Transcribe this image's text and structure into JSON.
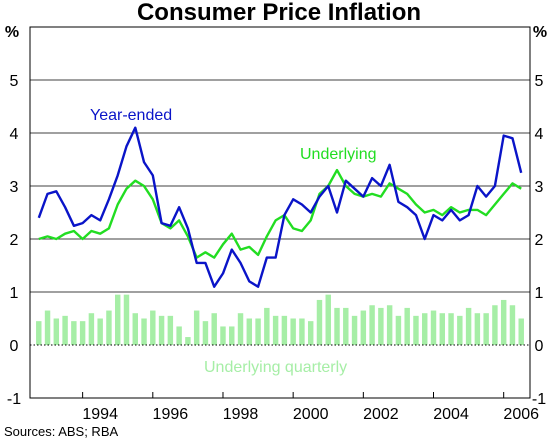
{
  "chart_data": {
    "type": "line",
    "title": "Consumer Price Inflation",
    "unit_left": "%",
    "unit_right": "%",
    "source": "Sources: ABS; RBA",
    "ylim": [
      -1,
      6
    ],
    "y_ticks": [
      -1,
      0,
      1,
      2,
      3,
      4,
      5
    ],
    "xlim": [
      1992.5,
      2006.75
    ],
    "x_ticks": [
      "1994",
      "1996",
      "1998",
      "2000",
      "2002",
      "2004",
      "2006"
    ],
    "grid": true,
    "colors": {
      "year_ended": "#0a14c8",
      "underlying": "#22dd22",
      "underlying_quarterly": "#a6eea6",
      "grid": "#000000",
      "zero_line": "#000000"
    },
    "annotations": {
      "year_ended": "Year-ended",
      "underlying": "Underlying",
      "underlying_quarterly": "Underlying quarterly"
    },
    "series": [
      {
        "name": "Year-ended",
        "kind": "line",
        "x": [
          1992.75,
          1993.0,
          1993.25,
          1993.5,
          1993.75,
          1994.0,
          1994.25,
          1994.5,
          1994.75,
          1995.0,
          1995.25,
          1995.5,
          1995.75,
          1996.0,
          1996.25,
          1996.5,
          1996.75,
          1997.0,
          1997.25,
          1997.5,
          1997.75,
          1998.0,
          1998.25,
          1998.5,
          1998.75,
          1999.0,
          1999.25,
          1999.5,
          1999.75,
          2000.0,
          2000.25,
          2000.5,
          2000.75,
          2001.0,
          2001.25,
          2001.5,
          2001.75,
          2002.0,
          2002.25,
          2002.5,
          2002.75,
          2003.0,
          2003.25,
          2003.5,
          2003.75,
          2004.0,
          2004.25,
          2004.5,
          2004.75,
          2005.0,
          2005.25,
          2005.5,
          2005.75,
          2006.0,
          2006.25,
          2006.5
        ],
        "values": [
          2.4,
          2.85,
          2.9,
          2.6,
          2.25,
          2.3,
          2.45,
          2.35,
          2.75,
          3.2,
          3.75,
          4.1,
          3.45,
          3.2,
          2.3,
          2.25,
          2.6,
          2.2,
          1.55,
          1.55,
          1.1,
          1.35,
          1.8,
          1.55,
          1.2,
          1.1,
          1.65,
          1.65,
          2.45,
          2.75,
          2.65,
          2.5,
          2.8,
          3.0,
          2.5,
          3.1,
          2.95,
          2.8,
          3.15,
          3.0,
          3.4,
          2.7,
          2.6,
          2.45,
          2.0,
          2.45,
          2.35,
          2.55,
          2.35,
          2.45,
          3.0,
          2.8,
          3.0,
          3.95,
          3.9,
          3.25
        ]
      },
      {
        "name": "Underlying",
        "kind": "line",
        "x": [
          1992.75,
          1993.0,
          1993.25,
          1993.5,
          1993.75,
          1994.0,
          1994.25,
          1994.5,
          1994.75,
          1995.0,
          1995.25,
          1995.5,
          1995.75,
          1996.0,
          1996.25,
          1996.5,
          1996.75,
          1997.0,
          1997.25,
          1997.5,
          1997.75,
          1998.0,
          1998.25,
          1998.5,
          1998.75,
          1999.0,
          1999.25,
          1999.5,
          1999.75,
          2000.0,
          2000.25,
          2000.5,
          2000.75,
          2001.0,
          2001.25,
          2001.5,
          2001.75,
          2002.0,
          2002.25,
          2002.5,
          2002.75,
          2003.0,
          2003.25,
          2003.5,
          2003.75,
          2004.0,
          2004.25,
          2004.5,
          2004.75,
          2005.0,
          2005.25,
          2005.5,
          2005.75,
          2006.0,
          2006.25,
          2006.5
        ],
        "values": [
          2.0,
          2.05,
          2.0,
          2.1,
          2.15,
          2.0,
          2.15,
          2.1,
          2.2,
          2.65,
          2.95,
          3.1,
          3.0,
          2.75,
          2.3,
          2.2,
          2.35,
          2.05,
          1.65,
          1.75,
          1.65,
          1.9,
          2.1,
          1.8,
          1.85,
          1.7,
          2.05,
          2.35,
          2.45,
          2.2,
          2.15,
          2.35,
          2.85,
          3.0,
          3.3,
          3.0,
          2.85,
          2.8,
          2.85,
          2.8,
          3.05,
          2.95,
          2.85,
          2.65,
          2.5,
          2.55,
          2.45,
          2.6,
          2.5,
          2.55,
          2.55,
          2.45,
          2.65,
          2.85,
          3.05,
          2.95
        ]
      },
      {
        "name": "Underlying quarterly",
        "kind": "bar",
        "x": [
          1992.75,
          1993.0,
          1993.25,
          1993.5,
          1993.75,
          1994.0,
          1994.25,
          1994.5,
          1994.75,
          1995.0,
          1995.25,
          1995.5,
          1995.75,
          1996.0,
          1996.25,
          1996.5,
          1996.75,
          1997.0,
          1997.25,
          1997.5,
          1997.75,
          1998.0,
          1998.25,
          1998.5,
          1998.75,
          1999.0,
          1999.25,
          1999.5,
          1999.75,
          2000.0,
          2000.25,
          2000.5,
          2000.75,
          2001.0,
          2001.25,
          2001.5,
          2001.75,
          2002.0,
          2002.25,
          2002.5,
          2002.75,
          2003.0,
          2003.25,
          2003.5,
          2003.75,
          2004.0,
          2004.25,
          2004.5,
          2004.75,
          2005.0,
          2005.25,
          2005.5,
          2005.75,
          2006.0,
          2006.25,
          2006.5
        ],
        "values": [
          0.45,
          0.65,
          0.5,
          0.55,
          0.45,
          0.45,
          0.6,
          0.5,
          0.65,
          0.95,
          0.95,
          0.6,
          0.5,
          0.65,
          0.55,
          0.55,
          0.35,
          0.15,
          0.65,
          0.45,
          0.6,
          0.35,
          0.35,
          0.6,
          0.5,
          0.5,
          0.7,
          0.55,
          0.55,
          0.5,
          0.5,
          0.45,
          0.85,
          0.95,
          0.7,
          0.7,
          0.55,
          0.65,
          0.75,
          0.7,
          0.75,
          0.55,
          0.7,
          0.55,
          0.6,
          0.65,
          0.6,
          0.6,
          0.55,
          0.7,
          0.6,
          0.6,
          0.75,
          0.85,
          0.75,
          0.5
        ]
      }
    ]
  }
}
